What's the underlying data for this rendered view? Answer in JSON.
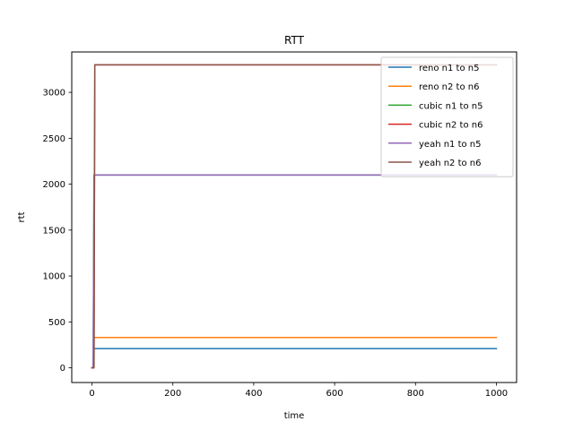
{
  "chart_data": {
    "type": "line",
    "title": "RTT",
    "xlabel": "time",
    "ylabel": "rtt",
    "xlim": [
      -50,
      1050
    ],
    "ylim": [
      -160,
      3440
    ],
    "xticks": [
      0,
      200,
      400,
      600,
      800,
      1000
    ],
    "yticks": [
      0,
      500,
      1000,
      1500,
      2000,
      2500,
      3000
    ],
    "legend_position": "top-right",
    "grid": false,
    "series": [
      {
        "name": "reno n1 to n5",
        "color": "#1f77b4",
        "points": [
          [
            0,
            0
          ],
          [
            3,
            0
          ],
          [
            5,
            210
          ],
          [
            1000,
            210
          ]
        ]
      },
      {
        "name": "reno n2 to n6",
        "color": "#ff7f0e",
        "points": [
          [
            0,
            0
          ],
          [
            3,
            0
          ],
          [
            5,
            330
          ],
          [
            1000,
            330
          ]
        ]
      },
      {
        "name": "cubic n1 to n5",
        "color": "#2ca02c",
        "points": [
          [
            0,
            0
          ],
          [
            3,
            0
          ],
          [
            5,
            2100
          ],
          [
            1000,
            2100
          ]
        ]
      },
      {
        "name": "cubic n2 to n6",
        "color": "#d62728",
        "points": [
          [
            0,
            0
          ],
          [
            5,
            0
          ],
          [
            7,
            3300
          ],
          [
            1000,
            3300
          ]
        ]
      },
      {
        "name": "yeah n1 to n5",
        "color": "#9467bd",
        "points": [
          [
            0,
            0
          ],
          [
            3,
            0
          ],
          [
            5,
            2100
          ],
          [
            1000,
            2100
          ]
        ]
      },
      {
        "name": "yeah n2 to n6",
        "color": "#8c564b",
        "points": [
          [
            0,
            0
          ],
          [
            5,
            0
          ],
          [
            7,
            3300
          ],
          [
            1000,
            3300
          ]
        ]
      }
    ]
  }
}
